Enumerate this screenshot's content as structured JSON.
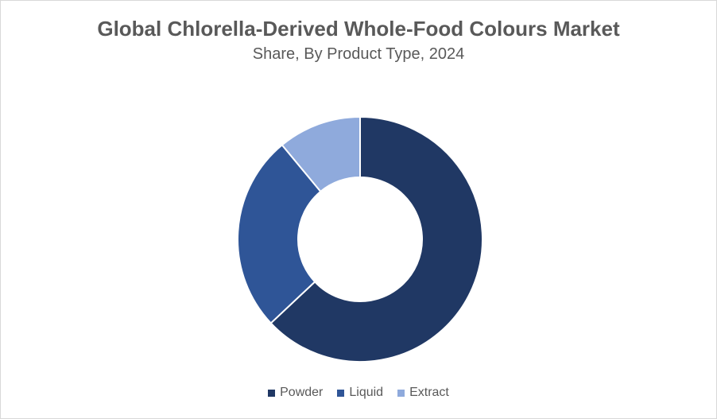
{
  "chart_data": {
    "type": "pie",
    "variant": "donut",
    "title": "Global Chlorella-Derived Whole-Food Colours Market",
    "subtitle": "Share, By Product Type, 2024",
    "categories": [
      "Powder",
      "Liquid",
      "Extract"
    ],
    "values": [
      63,
      26,
      11
    ],
    "colors": [
      "#203864",
      "#2f5597",
      "#8faadc"
    ],
    "legend_position": "bottom"
  }
}
